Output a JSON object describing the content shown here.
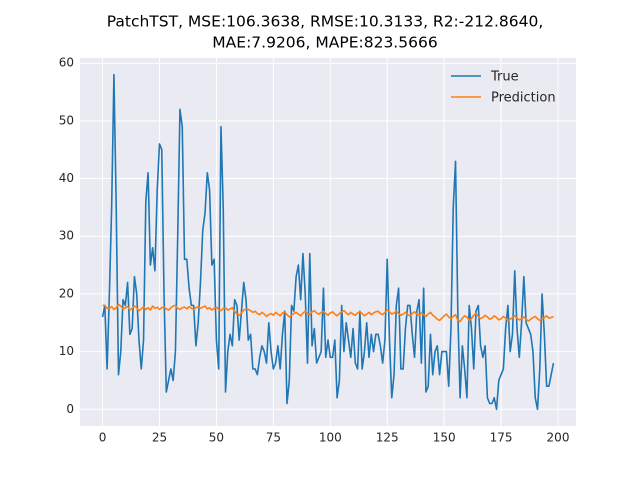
{
  "chart_data": {
    "type": "line",
    "title": [
      "PatchTST, MSE:106.3638, RMSE:10.3133, R2:-212.8640,",
      "MAE:7.9206, MAPE:823.5666"
    ],
    "x": [
      0,
      1,
      2,
      3,
      4,
      5,
      6,
      7,
      8,
      9,
      10,
      11,
      12,
      13,
      14,
      15,
      16,
      17,
      18,
      19,
      20,
      21,
      22,
      23,
      24,
      25,
      26,
      27,
      28,
      29,
      30,
      31,
      32,
      33,
      34,
      35,
      36,
      37,
      38,
      39,
      40,
      41,
      42,
      43,
      44,
      45,
      46,
      47,
      48,
      49,
      50,
      51,
      52,
      53,
      54,
      55,
      56,
      57,
      58,
      59,
      60,
      61,
      62,
      63,
      64,
      65,
      66,
      67,
      68,
      69,
      70,
      71,
      72,
      73,
      74,
      75,
      76,
      77,
      78,
      79,
      80,
      81,
      82,
      83,
      84,
      85,
      86,
      87,
      88,
      89,
      90,
      91,
      92,
      93,
      94,
      95,
      96,
      97,
      98,
      99,
      100,
      101,
      102,
      103,
      104,
      105,
      106,
      107,
      108,
      109,
      110,
      111,
      112,
      113,
      114,
      115,
      116,
      117,
      118,
      119,
      120,
      121,
      122,
      123,
      124,
      125,
      126,
      127,
      128,
      129,
      130,
      131,
      132,
      133,
      134,
      135,
      136,
      137,
      138,
      139,
      140,
      141,
      142,
      143,
      144,
      145,
      146,
      147,
      148,
      149,
      150,
      151,
      152,
      153,
      154,
      155,
      156,
      157,
      158,
      159,
      160,
      161,
      162,
      163,
      164,
      165,
      166,
      167,
      168,
      169,
      170,
      171,
      172,
      173,
      174,
      175,
      176,
      177,
      178,
      179,
      180,
      181,
      182,
      183,
      184,
      185,
      186,
      187,
      188,
      189,
      190,
      191,
      192,
      193,
      194,
      195,
      196,
      197,
      198
    ],
    "series": [
      {
        "name": "True",
        "color": "#1f77b4",
        "values": [
          16,
          18,
          7,
          20,
          35,
          58,
          35,
          6,
          10,
          19,
          18,
          22,
          13,
          14,
          23,
          20,
          12,
          7,
          12,
          36,
          41,
          25,
          28,
          24,
          38,
          46,
          45,
          20,
          3,
          5,
          7,
          5,
          10,
          30,
          52,
          49,
          26,
          26,
          21,
          18,
          18,
          11,
          15,
          22,
          31,
          34,
          41,
          38,
          25,
          26,
          12,
          7,
          49,
          35,
          3,
          10,
          13,
          11,
          19,
          18,
          12,
          17,
          22,
          19,
          12,
          13,
          7,
          7,
          6,
          9,
          11,
          10,
          8,
          15,
          10,
          7,
          8,
          11,
          7,
          13,
          17,
          1,
          5,
          18,
          17,
          23,
          25,
          19,
          27,
          20,
          8,
          27,
          11,
          14,
          8,
          9,
          10,
          21,
          9,
          12,
          9,
          9,
          12,
          2,
          5,
          18,
          10,
          15,
          12,
          9,
          14,
          8,
          7,
          17,
          7,
          10,
          15,
          9,
          13,
          10,
          13,
          13,
          11,
          8,
          12,
          26,
          12,
          2,
          6,
          18,
          21,
          7,
          7,
          14,
          18,
          18,
          13,
          9,
          17,
          19,
          8,
          21,
          3,
          4,
          13,
          6,
          10,
          11,
          6,
          10,
          10,
          10,
          4,
          14,
          35,
          43,
          17,
          2,
          11,
          7,
          2,
          18,
          14,
          7,
          17,
          18,
          11,
          9,
          11,
          2,
          1,
          1,
          2,
          0,
          5,
          6,
          7,
          14,
          18,
          10,
          13,
          24,
          14,
          9,
          15,
          23,
          15,
          14,
          13,
          10,
          2,
          0,
          7,
          20,
          13,
          4,
          4,
          6,
          8
        ]
      },
      {
        "name": "Prediction",
        "color": "#ff7f0e",
        "values": [
          18,
          18,
          17.5,
          17.5,
          17.8,
          17.3,
          17.6,
          18.2,
          17.9,
          17.4,
          17.6,
          17.8,
          17.2,
          17.5,
          17.9,
          17.6,
          17.1,
          17.4,
          17.8,
          17.3,
          17.6,
          17.2,
          17.9,
          17.5,
          17.7,
          17.3,
          17.6,
          17.8,
          17.4,
          17.2,
          17.6,
          17.9,
          18.0,
          17.5,
          17.3,
          17.6,
          17.7,
          17.4,
          17.8,
          17.5,
          17.3,
          17.6,
          17.8,
          17.5,
          17.7,
          17.9,
          17.4,
          17.6,
          17.2,
          17.5,
          17.7,
          17.3,
          17.1,
          17.5,
          17.6,
          17.2,
          17.4,
          17.6,
          17.0,
          16.5,
          16.3,
          16.7,
          17.2,
          17.4,
          17.3,
          17.1,
          16.8,
          17.0,
          16.6,
          16.4,
          16.8,
          16.5,
          16.1,
          16.4,
          16.6,
          16.3,
          16.8,
          16.5,
          16.2,
          16.7,
          16.9,
          16.4,
          16.0,
          16.3,
          16.6,
          16.8,
          16.5,
          16.2,
          16.7,
          17.0,
          16.6,
          16.4,
          16.9,
          17.1,
          16.7,
          16.5,
          16.8,
          17.0,
          16.6,
          16.3,
          16.7,
          16.9,
          16.5,
          16.2,
          16.6,
          16.9,
          17.1,
          16.7,
          16.4,
          16.8,
          16.5,
          16.3,
          16.7,
          16.9,
          16.6,
          16.2,
          16.5,
          16.8,
          16.4,
          16.7,
          16.9,
          17.0,
          16.6,
          16.4,
          16.8,
          17.2,
          16.9,
          16.5,
          16.7,
          17.0,
          16.6,
          16.3,
          16.5,
          16.8,
          16.4,
          16.2,
          16.6,
          16.9,
          16.5,
          16.3,
          16.7,
          16.4,
          16.1,
          16.5,
          16.8,
          16.3,
          16.0,
          15.6,
          15.4,
          15.8,
          16.2,
          16.5,
          16.0,
          15.7,
          16.1,
          16.4,
          15.5,
          15.2,
          15.8,
          16.2,
          16.0,
          15.4,
          15.7,
          16.3,
          16.6,
          16.1,
          15.7,
          15.9,
          16.3,
          16.0,
          15.6,
          15.8,
          16.2,
          15.9,
          15.5,
          15.7,
          16.1,
          15.8,
          15.4,
          15.6,
          15.9,
          16.2,
          15.8,
          15.5,
          15.7,
          16.0,
          15.6,
          15.3,
          15.6,
          15.9,
          16.1,
          15.7,
          15.4,
          15.6,
          15.9,
          16.2,
          15.8,
          15.9,
          16.1
        ]
      }
    ],
    "xlim": [
      -9.9,
      207.9
    ],
    "ylim": [
      -2.9,
      60.9
    ],
    "xticks": [
      0,
      25,
      50,
      75,
      100,
      125,
      150,
      175,
      200
    ],
    "yticks": [
      0,
      10,
      20,
      30,
      40,
      50,
      60
    ],
    "grid": true,
    "legend": "upper right"
  }
}
